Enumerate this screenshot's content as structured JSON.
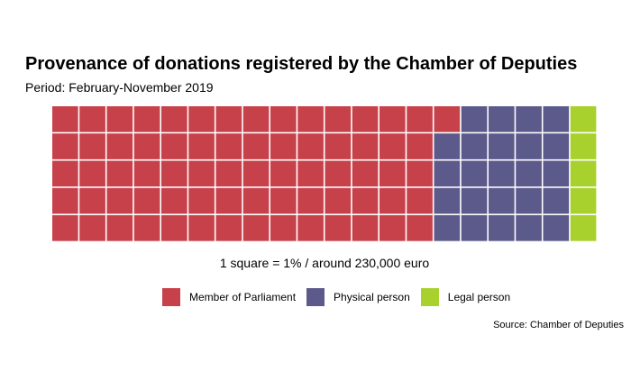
{
  "chart_data": {
    "type": "waffle",
    "title": "Provenance of donations registered by the Chamber of Deputies",
    "subtitle": "Period: February-November 2019",
    "caption": "1 square = 1% / around 230,000 euro",
    "source": "Source: Chamber of Deputies",
    "grid": {
      "rows": 5,
      "columns": 20
    },
    "categories": [
      "Member of Parliament",
      "Physical person",
      "Legal person"
    ],
    "values": [
      71,
      24,
      5
    ],
    "colors": [
      "#c7414b",
      "#5c5a8a",
      "#a8d12d"
    ],
    "legend_position": "bottom"
  }
}
